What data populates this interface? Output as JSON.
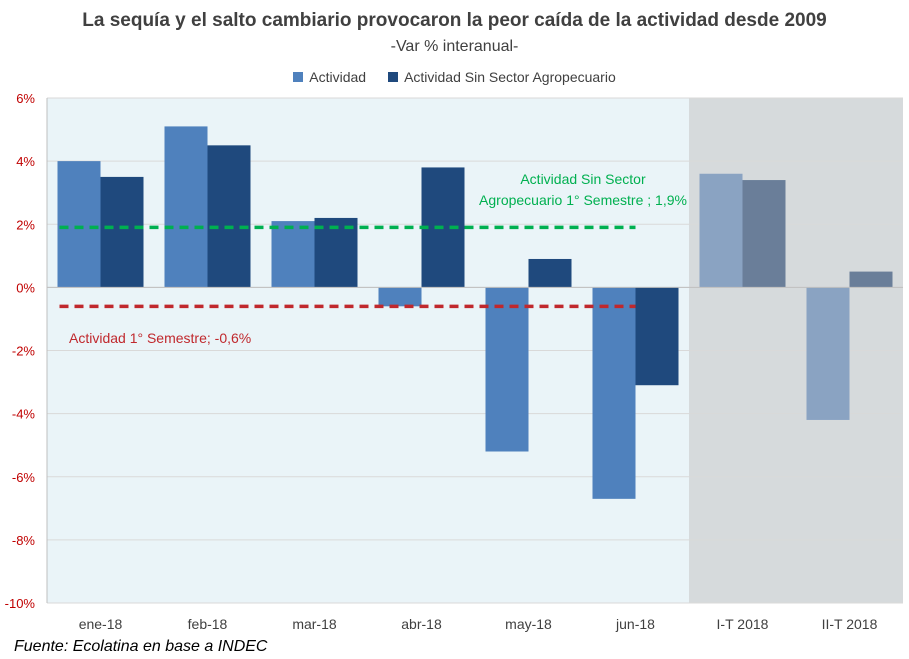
{
  "title": "La sequía y el salto cambiario provocaron la peor caída de la actividad desde 2009",
  "subtitle": "-Var % interanual-",
  "source": "Fuente: Ecolatina en base a INDEC",
  "colors": {
    "actividad": "#4f81bd",
    "sin_sector": "#1f497d",
    "actividad_q": "#8aa3c2",
    "sin_sector_q": "#6a7e99",
    "plot_bg": "#eaf4f8",
    "shade_bg": "#d6dadc",
    "green": "#00b050",
    "red": "#c0282d",
    "axis_text": "#c00000"
  },
  "chart_data": {
    "type": "bar",
    "categories": [
      "ene-18",
      "feb-18",
      "mar-18",
      "abr-18",
      "may-18",
      "jun-18",
      "I-T 2018",
      "II-T 2018"
    ],
    "series": [
      {
        "name": "Actividad",
        "values": [
          4.0,
          5.1,
          2.1,
          -0.6,
          -5.2,
          -6.7,
          3.6,
          -4.2
        ]
      },
      {
        "name": "Actividad Sin Sector Agropecuario",
        "values": [
          3.5,
          4.5,
          2.2,
          3.8,
          0.9,
          -3.1,
          3.4,
          0.5
        ]
      }
    ],
    "y_tick_labels": [
      "6%",
      "4%",
      "2%",
      "0%",
      "-2%",
      "-4%",
      "-6%",
      "-8%",
      "-10%"
    ],
    "ylim": [
      -10,
      6
    ],
    "grid": true,
    "legend_position": "top",
    "shaded_categories": [
      "I-T 2018",
      "II-T 2018"
    ],
    "reference_lines": [
      {
        "value": 1.9,
        "label": "Actividad Sin Sector Agropecuario  1° Semestre ; 1,9%"
      },
      {
        "value": -0.6,
        "label": "Actividad 1° Semestre; -0,6%"
      }
    ]
  }
}
